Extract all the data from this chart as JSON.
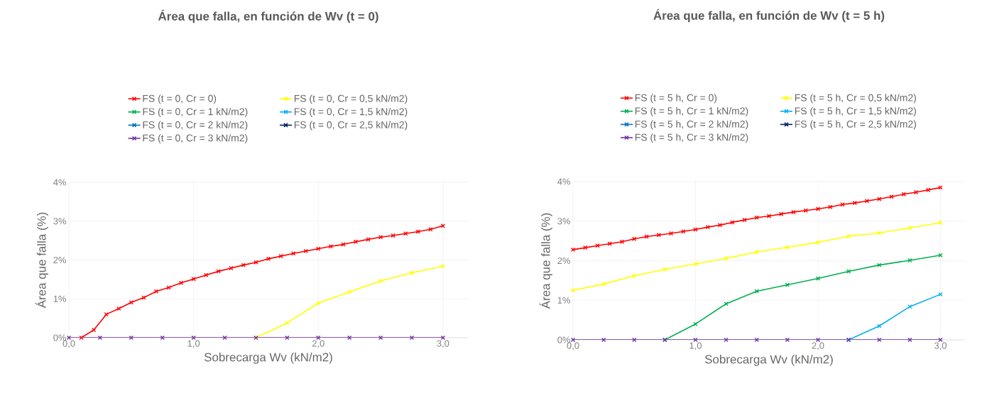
{
  "chart_data": [
    {
      "type": "line",
      "title": "Área que falla, en función de Wv (t = 0)",
      "xlabel": "Sobrecarga Wv (kN/m2)",
      "ylabel": "Área que falla (%)",
      "x": [
        0,
        0.25,
        0.5,
        0.75,
        1,
        1.25,
        1.5,
        1.75,
        2,
        2.25,
        2.5,
        2.75,
        3
      ],
      "series": [
        {
          "name": "FS (t = 0, Cr = 0)",
          "color": "#ff0000",
          "x": [
            0.1,
            0.2,
            0.3,
            0.4,
            0.5,
            0.6,
            0.7,
            0.8,
            0.9,
            1.0,
            1.1,
            1.2,
            1.3,
            1.4,
            1.5,
            1.6,
            1.7,
            1.8,
            1.9,
            2.0,
            2.1,
            2.2,
            2.3,
            2.4,
            2.5,
            2.6,
            2.7,
            2.8,
            2.9,
            3.0
          ],
          "values": [
            0,
            0.2,
            0.6,
            0.75,
            0.91,
            1.03,
            1.19,
            1.29,
            1.41,
            1.51,
            1.61,
            1.71,
            1.79,
            1.87,
            1.94,
            2.03,
            2.1,
            2.17,
            2.23,
            2.29,
            2.35,
            2.4,
            2.47,
            2.53,
            2.59,
            2.63,
            2.68,
            2.73,
            2.79,
            2.88
          ]
        },
        {
          "name": "FS (t = 0, Cr = 0,5 kN/m2)",
          "color": "#ffff00",
          "values": [
            null,
            null,
            null,
            null,
            null,
            null,
            0,
            0.38,
            0.89,
            1.18,
            1.46,
            1.67,
            1.84
          ]
        },
        {
          "name": "FS (t = 0, Cr = 1 kN/m2)",
          "color": "#00b050",
          "values": [
            null,
            null,
            null,
            null,
            null,
            null,
            null,
            null,
            null,
            null,
            null,
            null,
            null
          ]
        },
        {
          "name": "FS (t = 0, Cr = 1,5 kN/m2)",
          "color": "#00b0f0",
          "values": [
            null,
            null,
            null,
            null,
            null,
            null,
            null,
            null,
            null,
            null,
            null,
            null,
            null
          ]
        },
        {
          "name": "FS (t = 0, Cr = 2 kN/m2)",
          "color": "#0070c0",
          "values": [
            null,
            null,
            null,
            null,
            null,
            null,
            null,
            null,
            null,
            null,
            null,
            null,
            null
          ]
        },
        {
          "name": "FS (t = 0, Cr = 2,5 kN/m2)",
          "color": "#002060",
          "values": [
            null,
            null,
            null,
            null,
            null,
            null,
            null,
            null,
            null,
            null,
            null,
            null,
            null
          ]
        },
        {
          "name": "FS (t = 0, Cr = 3 kN/m2)",
          "color": "#7030a0",
          "values": [
            0,
            0,
            0,
            0,
            0,
            0,
            0,
            0,
            0,
            0,
            0,
            0,
            0
          ]
        }
      ],
      "xlim": [
        0,
        3.2
      ],
      "ylim": [
        0,
        4
      ],
      "xticks": [
        {
          "value": 0,
          "label": "0,0"
        },
        {
          "value": 1,
          "label": "1,0"
        },
        {
          "value": 2,
          "label": "2,0"
        },
        {
          "value": 3,
          "label": "3,0"
        }
      ],
      "yticks": [
        {
          "value": 0,
          "label": "0%"
        },
        {
          "value": 1,
          "label": "1%"
        },
        {
          "value": 2,
          "label": "2%"
        },
        {
          "value": 3,
          "label": "3%"
        },
        {
          "value": 4,
          "label": "4%"
        }
      ],
      "grid": true,
      "legend": "top",
      "marker": "cross",
      "line_style": "solid"
    },
    {
      "type": "line",
      "title": "Área que falla, en función de Wv (t = 5 h)",
      "xlabel": "Sobrecarga Wv (kN/m2)",
      "ylabel": "Área que falla (%)",
      "x": [
        0,
        0.25,
        0.5,
        0.75,
        1,
        1.25,
        1.5,
        1.75,
        2,
        2.25,
        2.5,
        2.75,
        3
      ],
      "series": [
        {
          "name": "FS (t = 5 h, Cr = 0)",
          "color": "#ff0000",
          "x": [
            0,
            0.1,
            0.2,
            0.3,
            0.4,
            0.5,
            0.6,
            0.7,
            0.8,
            0.9,
            1.0,
            1.1,
            1.2,
            1.3,
            1.4,
            1.5,
            1.6,
            1.7,
            1.8,
            1.9,
            2.0,
            2.1,
            2.2,
            2.3,
            2.4,
            2.5,
            2.6,
            2.7,
            2.8,
            2.9,
            3.0
          ],
          "values": [
            2.28,
            2.33,
            2.38,
            2.43,
            2.48,
            2.55,
            2.61,
            2.65,
            2.69,
            2.74,
            2.79,
            2.85,
            2.9,
            2.97,
            3.03,
            3.09,
            3.13,
            3.18,
            3.23,
            3.27,
            3.31,
            3.36,
            3.42,
            3.46,
            3.51,
            3.56,
            3.62,
            3.68,
            3.73,
            3.79,
            3.85
          ]
        },
        {
          "name": "FS (t = 5 h, Cr = 0,5 kN/m2)",
          "color": "#ffff00",
          "values": [
            1.25,
            1.41,
            1.62,
            1.78,
            1.92,
            2.06,
            2.22,
            2.34,
            2.46,
            2.62,
            2.7,
            2.83,
            2.96
          ]
        },
        {
          "name": "FS (t = 5 h, Cr = 1 kN/m2)",
          "color": "#00b050",
          "values": [
            null,
            null,
            null,
            0,
            0.4,
            0.91,
            1.23,
            1.39,
            1.55,
            1.73,
            1.89,
            2.01,
            2.14
          ]
        },
        {
          "name": "FS (t = 5 h, Cr = 1,5 kN/m2)",
          "color": "#00b0f0",
          "values": [
            null,
            null,
            null,
            null,
            null,
            null,
            null,
            null,
            null,
            0,
            0.35,
            0.84,
            1.15
          ]
        },
        {
          "name": "FS (t = 5 h, Cr = 2 kN/m2)",
          "color": "#0070c0",
          "values": [
            null,
            null,
            null,
            null,
            null,
            null,
            null,
            null,
            null,
            null,
            null,
            null,
            null
          ]
        },
        {
          "name": "FS (t = 5 h, Cr = 2,5 kN/m2)",
          "color": "#002060",
          "values": [
            null,
            null,
            null,
            null,
            null,
            null,
            null,
            null,
            null,
            null,
            null,
            null,
            null
          ]
        },
        {
          "name": "FS (t = 5 h, Cr = 3 kN/m2)",
          "color": "#7030a0",
          "values": [
            0,
            0,
            0,
            0,
            0,
            0,
            0,
            0,
            0,
            0,
            0,
            0,
            0
          ]
        }
      ],
      "xlim": [
        0,
        3.2
      ],
      "ylim": [
        0,
        4
      ],
      "xticks": [
        {
          "value": 0,
          "label": "0,0"
        },
        {
          "value": 1,
          "label": "1,0"
        },
        {
          "value": 2,
          "label": "2,0"
        },
        {
          "value": 3,
          "label": "3,0"
        }
      ],
      "yticks": [
        {
          "value": 0,
          "label": "0%"
        },
        {
          "value": 1,
          "label": "1%"
        },
        {
          "value": 2,
          "label": "2%"
        },
        {
          "value": 3,
          "label": "3%"
        },
        {
          "value": 4,
          "label": "4%"
        }
      ],
      "grid": true,
      "legend": "top",
      "marker": "cross",
      "line_style": "solid"
    }
  ]
}
